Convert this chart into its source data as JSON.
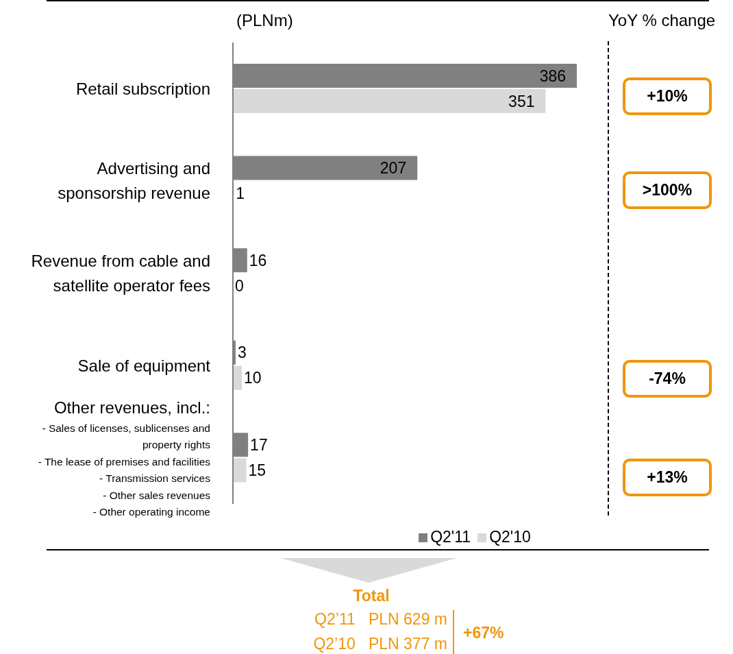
{
  "chart_data": {
    "type": "bar",
    "orientation": "horizontal",
    "categories": [
      "Retail subscription",
      "Advertising and sponsorship revenue",
      "Revenue from cable and satellite operator fees",
      "Sale of equipment",
      "Other revenues, incl.:\n- Sales of licenses, sublicenses and property rights\n- The lease of premises and facilities\n- Transmission services\n- Other sales revenues\n- Other operating income"
    ],
    "series": [
      {
        "name": "Q2'11",
        "color": "#808080",
        "values": [
          386,
          207,
          16,
          3,
          17
        ]
      },
      {
        "name": "Q2'10",
        "color": "#d9d9d9",
        "values": [
          351,
          1,
          0,
          10,
          15
        ]
      }
    ],
    "data_labels": true,
    "legend": "bottom",
    "grid": false,
    "annotations": [
      "(PLNm)",
      "YoY % change",
      "+10%",
      ">100%",
      "-74%",
      "+13%",
      "Total",
      "Q2’11   PLN 629 m",
      "Q2’10   PLN 377 m",
      "+67%"
    ]
  }
}
